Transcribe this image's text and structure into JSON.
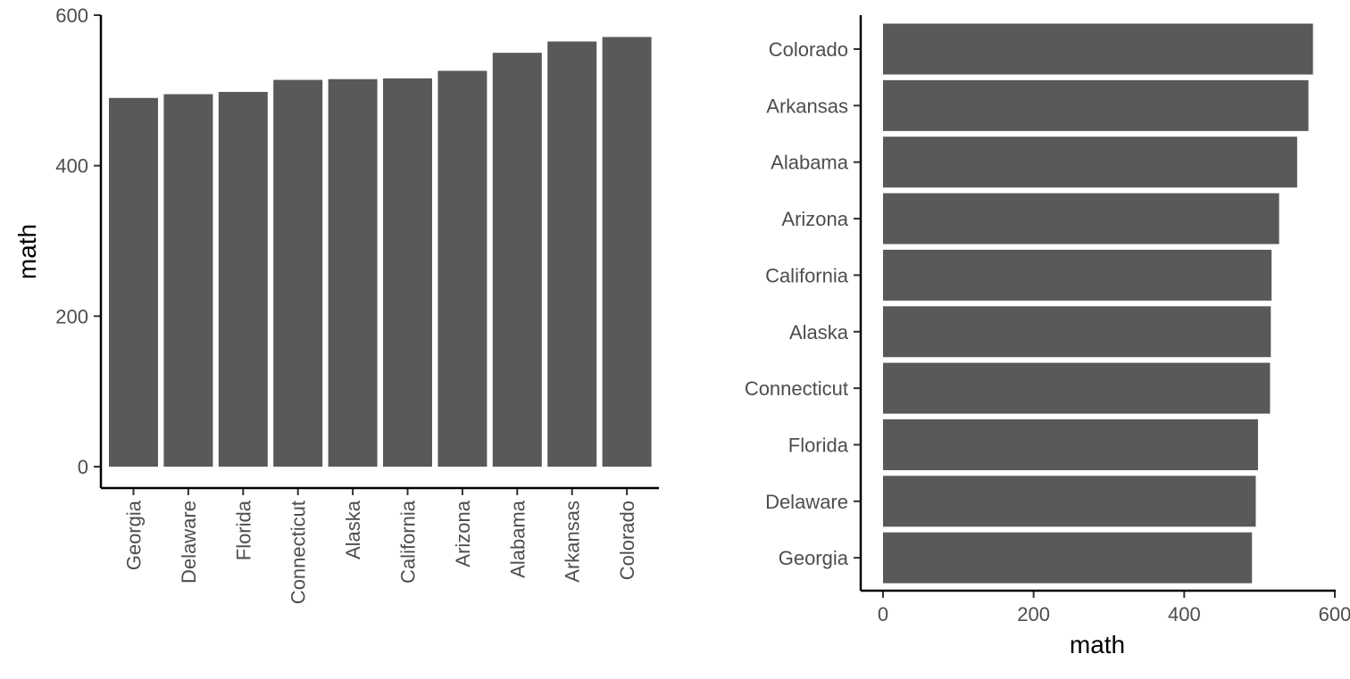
{
  "colors": {
    "bar": "#595959",
    "axis": "#000000",
    "tick_label": "#4d4d4d",
    "background": "#ffffff"
  },
  "chart_data": [
    {
      "type": "bar",
      "orientation": "vertical",
      "categories": [
        "Georgia",
        "Delaware",
        "Florida",
        "Connecticut",
        "Alaska",
        "California",
        "Arizona",
        "Alabama",
        "Arkansas",
        "Colorado"
      ],
      "values": [
        490,
        495,
        498,
        514,
        515,
        516,
        526,
        550,
        565,
        571
      ],
      "title": "",
      "xlabel": "",
      "ylabel": "math",
      "ylim": [
        0,
        600
      ],
      "yticks": [
        0,
        200,
        400,
        600
      ],
      "grid": false
    },
    {
      "type": "bar",
      "orientation": "horizontal",
      "categories": [
        "Colorado",
        "Arkansas",
        "Alabama",
        "Arizona",
        "California",
        "Alaska",
        "Connecticut",
        "Florida",
        "Delaware",
        "Georgia"
      ],
      "values": [
        571,
        565,
        550,
        526,
        516,
        515,
        514,
        498,
        495,
        490
      ],
      "title": "",
      "xlabel": "math",
      "ylabel": "",
      "xlim": [
        0,
        600
      ],
      "xticks": [
        0,
        200,
        400,
        600
      ],
      "grid": false
    }
  ]
}
